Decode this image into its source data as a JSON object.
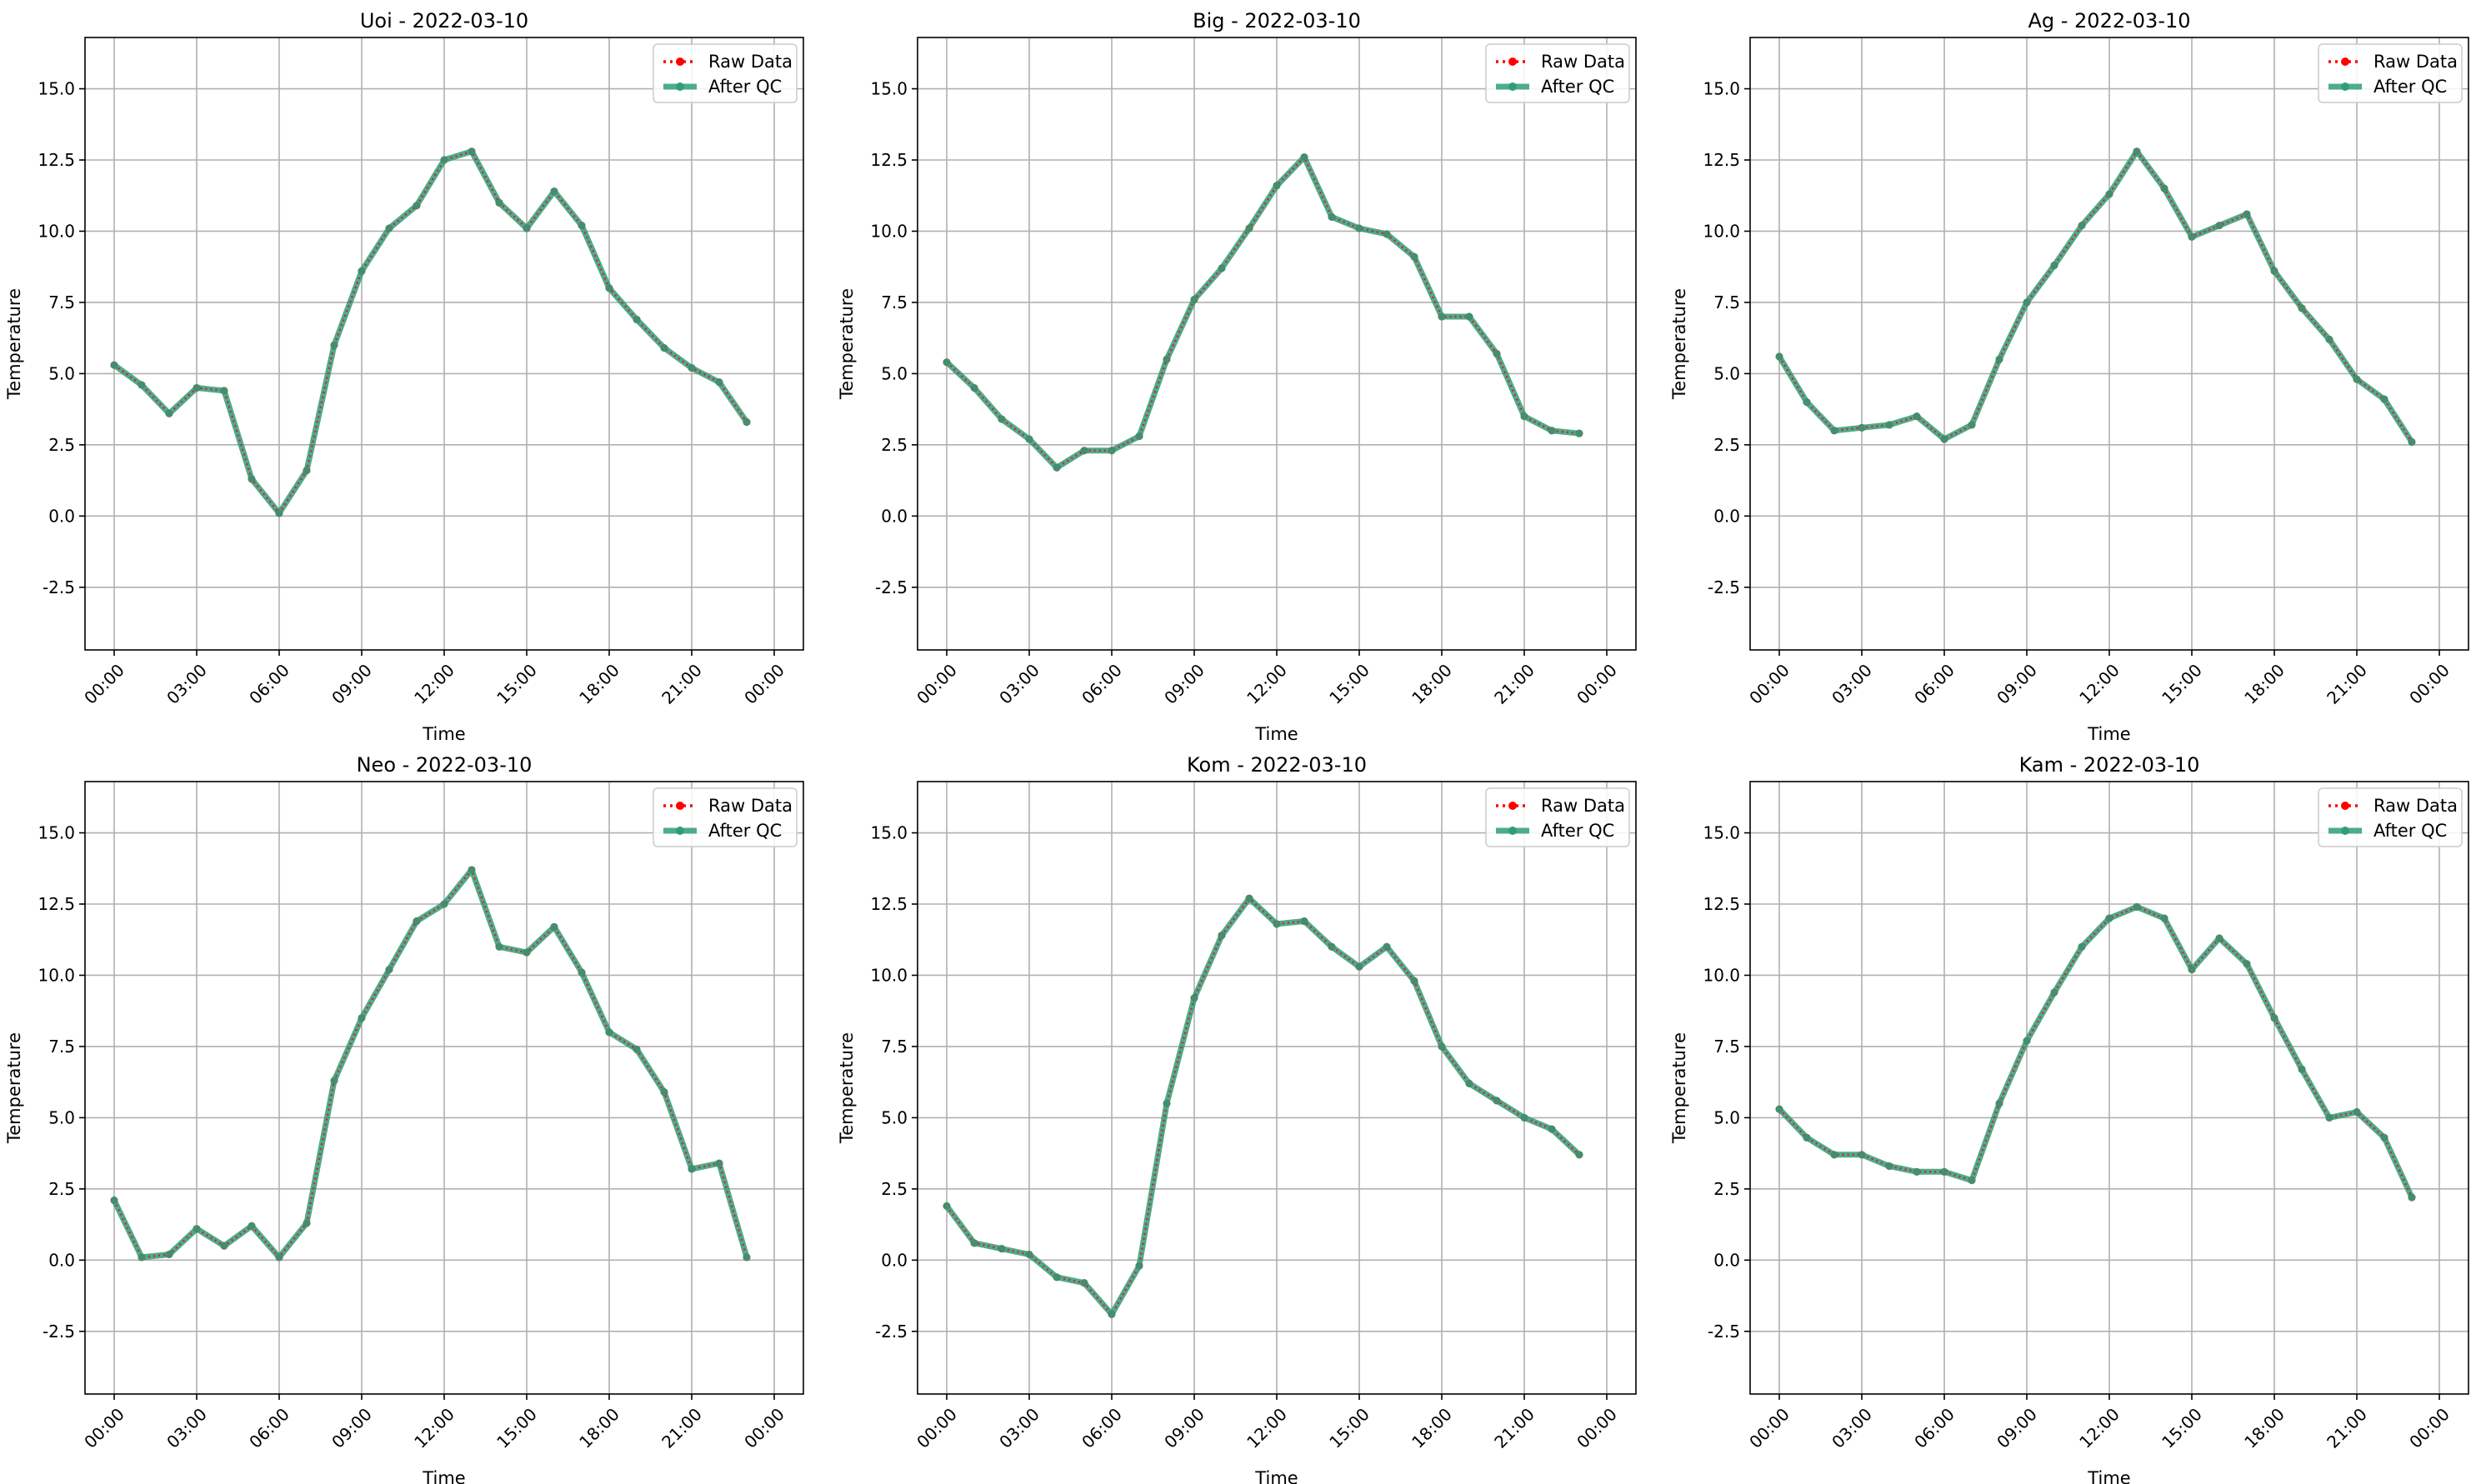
{
  "figure": {
    "background": "#ffffff"
  },
  "style": {
    "raw_color": "#ff0000",
    "qc_color": "#2e9e7a",
    "grid_color": "#b0b0b0",
    "legend_border": "#cccccc"
  },
  "chart_data": [
    {
      "type": "line",
      "title": "Uoi - 2022-03-10",
      "xlabel": "Time",
      "ylabel": "Temperature",
      "x": [
        "00:00",
        "01:00",
        "02:00",
        "03:00",
        "04:00",
        "05:00",
        "06:00",
        "07:00",
        "08:00",
        "09:00",
        "10:00",
        "11:00",
        "12:00",
        "13:00",
        "14:00",
        "15:00",
        "16:00",
        "17:00",
        "18:00",
        "19:00",
        "20:00",
        "21:00",
        "22:00",
        "23:00"
      ],
      "xticks": [
        "00:00",
        "03:00",
        "06:00",
        "09:00",
        "12:00",
        "15:00",
        "18:00",
        "21:00",
        "00:00"
      ],
      "ylim": [
        -4.7,
        16.8
      ],
      "yticks": [
        "-2.5",
        "0.0",
        "2.5",
        "5.0",
        "7.5",
        "10.0",
        "12.5",
        "15.0"
      ],
      "grid": true,
      "legend": "upper right",
      "series": [
        {
          "name": "Raw Data",
          "values": [
            5.3,
            4.6,
            3.6,
            4.5,
            4.4,
            1.3,
            0.1,
            1.6,
            6.0,
            8.6,
            10.1,
            10.9,
            12.5,
            12.8,
            11.0,
            10.1,
            11.4,
            10.2,
            8.0,
            6.9,
            5.9,
            5.2,
            4.7,
            3.3
          ]
        },
        {
          "name": "After QC",
          "values": [
            5.3,
            4.6,
            3.6,
            4.5,
            4.4,
            1.3,
            0.1,
            1.6,
            6.0,
            8.6,
            10.1,
            10.9,
            12.5,
            12.8,
            11.0,
            10.1,
            11.4,
            10.2,
            8.0,
            6.9,
            5.9,
            5.2,
            4.7,
            3.3
          ]
        }
      ]
    },
    {
      "type": "line",
      "title": "Big - 2022-03-10",
      "xlabel": "Time",
      "ylabel": "Temperature",
      "x": [
        "00:00",
        "01:00",
        "02:00",
        "03:00",
        "04:00",
        "05:00",
        "06:00",
        "07:00",
        "08:00",
        "09:00",
        "10:00",
        "11:00",
        "12:00",
        "13:00",
        "14:00",
        "15:00",
        "16:00",
        "17:00",
        "18:00",
        "19:00",
        "20:00",
        "21:00",
        "22:00",
        "23:00"
      ],
      "xticks": [
        "00:00",
        "03:00",
        "06:00",
        "09:00",
        "12:00",
        "15:00",
        "18:00",
        "21:00",
        "00:00"
      ],
      "ylim": [
        -4.7,
        16.8
      ],
      "yticks": [
        "-2.5",
        "0.0",
        "2.5",
        "5.0",
        "7.5",
        "10.0",
        "12.5",
        "15.0"
      ],
      "grid": true,
      "legend": "upper right",
      "series": [
        {
          "name": "Raw Data",
          "values": [
            5.4,
            4.5,
            3.4,
            2.7,
            1.7,
            2.3,
            2.3,
            2.8,
            5.5,
            7.6,
            8.7,
            10.1,
            11.6,
            12.6,
            10.5,
            10.1,
            9.9,
            9.1,
            7.0,
            7.0,
            5.7,
            3.5,
            3.0,
            2.9
          ]
        },
        {
          "name": "After QC",
          "values": [
            5.4,
            4.5,
            3.4,
            2.7,
            1.7,
            2.3,
            2.3,
            2.8,
            5.5,
            7.6,
            8.7,
            10.1,
            11.6,
            12.6,
            10.5,
            10.1,
            9.9,
            9.1,
            7.0,
            7.0,
            5.7,
            3.5,
            3.0,
            2.9
          ]
        }
      ]
    },
    {
      "type": "line",
      "title": "Ag - 2022-03-10",
      "xlabel": "Time",
      "ylabel": "Temperature",
      "x": [
        "00:00",
        "01:00",
        "02:00",
        "03:00",
        "04:00",
        "05:00",
        "06:00",
        "07:00",
        "08:00",
        "09:00",
        "10:00",
        "11:00",
        "12:00",
        "13:00",
        "14:00",
        "15:00",
        "16:00",
        "17:00",
        "18:00",
        "19:00",
        "20:00",
        "21:00",
        "22:00",
        "23:00"
      ],
      "xticks": [
        "00:00",
        "03:00",
        "06:00",
        "09:00",
        "12:00",
        "15:00",
        "18:00",
        "21:00",
        "00:00"
      ],
      "ylim": [
        -4.7,
        16.8
      ],
      "yticks": [
        "-2.5",
        "0.0",
        "2.5",
        "5.0",
        "7.5",
        "10.0",
        "12.5",
        "15.0"
      ],
      "grid": true,
      "legend": "upper right",
      "series": [
        {
          "name": "Raw Data",
          "values": [
            5.6,
            4.0,
            3.0,
            3.1,
            3.2,
            3.5,
            2.7,
            3.2,
            5.5,
            7.5,
            8.8,
            10.2,
            11.3,
            12.8,
            11.5,
            9.8,
            10.2,
            10.6,
            8.6,
            7.3,
            6.2,
            4.8,
            4.1,
            2.6
          ]
        },
        {
          "name": "After QC",
          "values": [
            5.6,
            4.0,
            3.0,
            3.1,
            3.2,
            3.5,
            2.7,
            3.2,
            5.5,
            7.5,
            8.8,
            10.2,
            11.3,
            12.8,
            11.5,
            9.8,
            10.2,
            10.6,
            8.6,
            7.3,
            6.2,
            4.8,
            4.1,
            2.6
          ]
        }
      ]
    },
    {
      "type": "line",
      "title": "Neo - 2022-03-10",
      "xlabel": "Time",
      "ylabel": "Temperature",
      "x": [
        "00:00",
        "01:00",
        "02:00",
        "03:00",
        "04:00",
        "05:00",
        "06:00",
        "07:00",
        "08:00",
        "09:00",
        "10:00",
        "11:00",
        "12:00",
        "13:00",
        "14:00",
        "15:00",
        "16:00",
        "17:00",
        "18:00",
        "19:00",
        "20:00",
        "21:00",
        "22:00",
        "23:00"
      ],
      "xticks": [
        "00:00",
        "03:00",
        "06:00",
        "09:00",
        "12:00",
        "15:00",
        "18:00",
        "21:00",
        "00:00"
      ],
      "ylim": [
        -4.7,
        16.8
      ],
      "yticks": [
        "-2.5",
        "0.0",
        "2.5",
        "5.0",
        "7.5",
        "10.0",
        "12.5",
        "15.0"
      ],
      "grid": true,
      "legend": "upper right",
      "series": [
        {
          "name": "Raw Data",
          "values": [
            2.1,
            0.1,
            0.2,
            1.1,
            0.5,
            1.2,
            0.1,
            1.3,
            6.3,
            8.5,
            10.2,
            11.9,
            12.5,
            13.7,
            11.0,
            10.8,
            11.7,
            10.1,
            8.0,
            7.4,
            5.9,
            3.2,
            3.4,
            0.1
          ]
        },
        {
          "name": "After QC",
          "values": [
            2.1,
            0.1,
            0.2,
            1.1,
            0.5,
            1.2,
            0.1,
            1.3,
            6.3,
            8.5,
            10.2,
            11.9,
            12.5,
            13.7,
            11.0,
            10.8,
            11.7,
            10.1,
            8.0,
            7.4,
            5.9,
            3.2,
            3.4,
            0.1
          ]
        }
      ]
    },
    {
      "type": "line",
      "title": "Kom - 2022-03-10",
      "xlabel": "Time",
      "ylabel": "Temperature",
      "x": [
        "00:00",
        "01:00",
        "02:00",
        "03:00",
        "04:00",
        "05:00",
        "06:00",
        "07:00",
        "08:00",
        "09:00",
        "10:00",
        "11:00",
        "12:00",
        "13:00",
        "14:00",
        "15:00",
        "16:00",
        "17:00",
        "18:00",
        "19:00",
        "20:00",
        "21:00",
        "22:00",
        "23:00"
      ],
      "xticks": [
        "00:00",
        "03:00",
        "06:00",
        "09:00",
        "12:00",
        "15:00",
        "18:00",
        "21:00",
        "00:00"
      ],
      "ylim": [
        -4.7,
        16.8
      ],
      "yticks": [
        "-2.5",
        "0.0",
        "2.5",
        "5.0",
        "7.5",
        "10.0",
        "12.5",
        "15.0"
      ],
      "grid": true,
      "legend": "upper right",
      "series": [
        {
          "name": "Raw Data",
          "values": [
            1.9,
            0.6,
            0.4,
            0.2,
            -0.6,
            -0.8,
            -1.9,
            -0.2,
            5.5,
            9.2,
            11.4,
            12.7,
            11.8,
            11.9,
            11.0,
            10.3,
            11.0,
            9.8,
            7.5,
            6.2,
            5.6,
            5.0,
            4.6,
            3.7
          ]
        },
        {
          "name": "After QC",
          "values": [
            1.9,
            0.6,
            0.4,
            0.2,
            -0.6,
            -0.8,
            -1.9,
            -0.2,
            5.5,
            9.2,
            11.4,
            12.7,
            11.8,
            11.9,
            11.0,
            10.3,
            11.0,
            9.8,
            7.5,
            6.2,
            5.6,
            5.0,
            4.6,
            3.7
          ]
        }
      ]
    },
    {
      "type": "line",
      "title": "Kam - 2022-03-10",
      "xlabel": "Time",
      "ylabel": "Temperature",
      "x": [
        "00:00",
        "01:00",
        "02:00",
        "03:00",
        "04:00",
        "05:00",
        "06:00",
        "07:00",
        "08:00",
        "09:00",
        "10:00",
        "11:00",
        "12:00",
        "13:00",
        "14:00",
        "15:00",
        "16:00",
        "17:00",
        "18:00",
        "19:00",
        "20:00",
        "21:00",
        "22:00",
        "23:00"
      ],
      "xticks": [
        "00:00",
        "03:00",
        "06:00",
        "09:00",
        "12:00",
        "15:00",
        "18:00",
        "21:00",
        "00:00"
      ],
      "ylim": [
        -4.7,
        16.8
      ],
      "yticks": [
        "-2.5",
        "0.0",
        "2.5",
        "5.0",
        "7.5",
        "10.0",
        "12.5",
        "15.0"
      ],
      "grid": true,
      "legend": "upper right",
      "series": [
        {
          "name": "Raw Data",
          "values": [
            5.3,
            4.3,
            3.7,
            3.7,
            3.3,
            3.1,
            3.1,
            2.8,
            5.5,
            7.7,
            9.4,
            11.0,
            12.0,
            12.4,
            12.0,
            10.2,
            11.3,
            10.4,
            8.5,
            6.7,
            5.0,
            5.2,
            4.3,
            2.2
          ]
        },
        {
          "name": "After QC",
          "values": [
            5.3,
            4.3,
            3.7,
            3.7,
            3.3,
            3.1,
            3.1,
            2.8,
            5.5,
            7.7,
            9.4,
            11.0,
            12.0,
            12.4,
            12.0,
            10.2,
            11.3,
            10.4,
            8.5,
            6.7,
            5.0,
            5.2,
            4.3,
            2.2
          ]
        }
      ]
    }
  ]
}
